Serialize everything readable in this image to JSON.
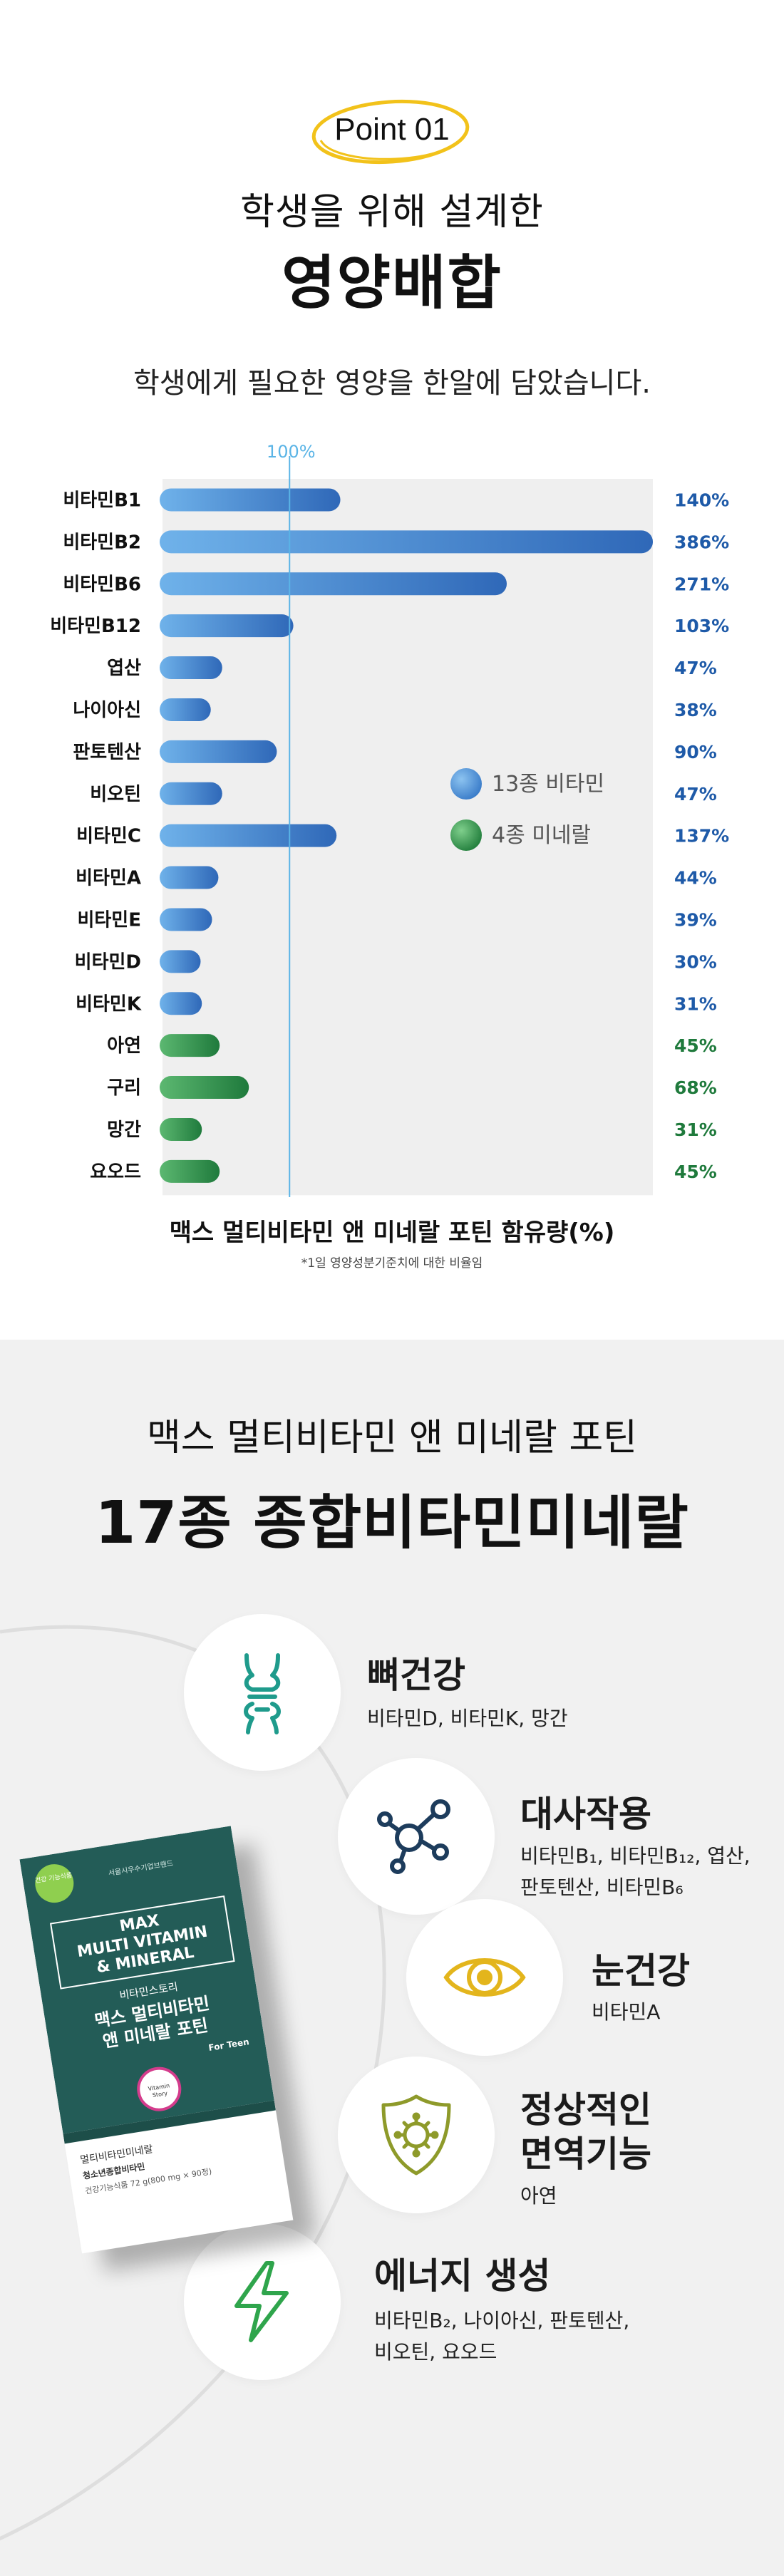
{
  "section1": {
    "point_label": "Point 01",
    "title_line1": "학생을 위해 설계한",
    "title_line2": "영양배합",
    "subtitle": "학생에게 필요한 영양을 한알에 담았습니다.",
    "legend": [
      {
        "label": "13종 비타민",
        "color": "#4a90d9"
      },
      {
        "label": "4종 미네랄",
        "color": "#2e8b4a"
      }
    ],
    "chart_footer_title": "맥스 멀티비타민 앤 미네랄 포틴 함유량(%)",
    "chart_footer_note": "*1일 영양성분기준치에 대한 비율임"
  },
  "chart_data": {
    "type": "bar",
    "orientation": "horizontal",
    "reference_line": {
      "label": "100%",
      "value": 100
    },
    "categories": [
      "비타민B1",
      "비타민B2",
      "비타민B6",
      "비타민B12",
      "엽산",
      "나이아신",
      "판토텐산",
      "비오틴",
      "비타민C",
      "비타민A",
      "비타민E",
      "비타민D",
      "비타민K",
      "아연",
      "구리",
      "망간",
      "요오드"
    ],
    "values": [
      140,
      386,
      271,
      103,
      47,
      38,
      90,
      47,
      137,
      44,
      39,
      30,
      31,
      45,
      68,
      31,
      45
    ],
    "value_labels": [
      "140%",
      "386%",
      "271%",
      "103%",
      "47%",
      "38%",
      "90%",
      "47%",
      "137%",
      "44%",
      "39%",
      "30%",
      "31%",
      "45%",
      "68%",
      "31%",
      "45%"
    ],
    "groups": [
      "vitamin",
      "vitamin",
      "vitamin",
      "vitamin",
      "vitamin",
      "vitamin",
      "vitamin",
      "vitamin",
      "vitamin",
      "vitamin",
      "vitamin",
      "vitamin",
      "vitamin",
      "mineral",
      "mineral",
      "mineral",
      "mineral"
    ],
    "xlim": [
      0,
      386
    ],
    "grid": false,
    "legend_position": "bottom-right",
    "colors": {
      "vitamin": "#3f7fd0",
      "mineral": "#2e8b4a",
      "vitamin_label": "#1e5aa8",
      "mineral_label": "#1f7a3c",
      "reference": "#5ab4e6"
    }
  },
  "section2": {
    "title_line1": "맥스 멀티비타민 앤 미네랄 포틴",
    "title_line2": "17종 종합비타민미네랄",
    "features": [
      {
        "icon": "bone-icon",
        "title": "뼈건강",
        "title_color": "#1f9b8c",
        "desc_lines": [
          "비타민D, 비타민K, 망간"
        ]
      },
      {
        "icon": "molecule-icon",
        "title": "대사작용",
        "title_color": "#1d3c5c",
        "desc_lines": [
          "비타민B₁, 비타민B₁₂, 엽산,",
          "판토텐산, 비타민B₆"
        ]
      },
      {
        "icon": "eye-icon",
        "title": "눈건강",
        "title_color": "#e3b51c",
        "desc_lines": [
          "비타민A"
        ]
      },
      {
        "icon": "shield-virus-icon",
        "title_lines": [
          "정상적인",
          "면역기능"
        ],
        "title_color": "#8e9a2a",
        "desc_lines": [
          "아연"
        ]
      },
      {
        "icon": "lightning-icon",
        "title": "에너지 생성",
        "title_color": "#2fa54c",
        "desc_lines": [
          "비타민B₂, 나이아신, 판토텐산,",
          "비오틴, 요오드"
        ]
      }
    ],
    "product": {
      "brand_badge": "건강 기능식품",
      "maker": "서울시우수기업브랜드",
      "name_en_lines": [
        "MAX",
        "MULTI VITAMIN",
        "& MINERAL"
      ],
      "brand_kr": "비타민스토리",
      "name_kr_lines": [
        "맥스 멀티비타민",
        "앤 미네랄 포틴"
      ],
      "for_teen": "For Teen",
      "seal_text": "Vitamin Story",
      "label_line1": "멀티비타민미네랄",
      "label_line2": "청소년종합비타민",
      "label_line3": "건강기능식품 72 g(800 mg × 90정)"
    }
  }
}
